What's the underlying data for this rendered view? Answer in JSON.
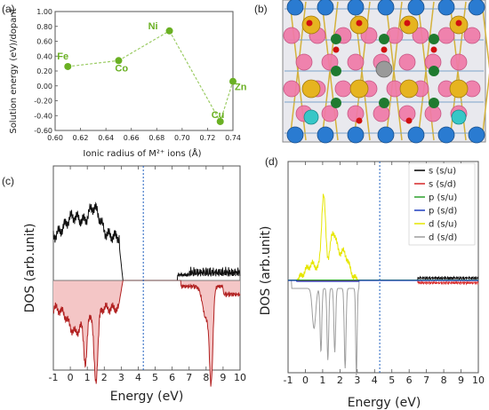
{
  "panels": {
    "a": "(a)",
    "b": "(b)",
    "c": "(c)",
    "d": "(d)"
  },
  "colors": {
    "point": "#6ab023",
    "dashed": "#9ccc65",
    "line_up": "#111111",
    "line_down": "#b22222",
    "fermi": "#1f5fbf",
    "s_u": "#000000",
    "s_d": "#d62728",
    "p_u": "#2ca02c",
    "p_d": "#1f3fbf",
    "d_u": "#e6e600",
    "d_d": "#9e9e9e"
  },
  "chart_data": [
    {
      "type": "scatter",
      "xlabel": "Ionic radius of M²⁺ ions (Å)",
      "ylabel": "Solution energy (eV)/dopant",
      "xlim": [
        0.6,
        0.74
      ],
      "ylim": [
        -0.6,
        1.0
      ],
      "xticks": [
        "0.60",
        "0.62",
        "0.64",
        "0.66",
        "0.68",
        "0.70",
        "0.72",
        "0.74"
      ],
      "yticks": [
        "-0.60",
        "-0.40",
        "-0.20",
        "0.00",
        "0.20",
        "0.40",
        "0.60",
        "0.80",
        "1.00"
      ],
      "points": [
        {
          "label": "Fe",
          "x": 0.61,
          "y": 0.26
        },
        {
          "label": "Co",
          "x": 0.65,
          "y": 0.34
        },
        {
          "label": "Ni",
          "x": 0.69,
          "y": 0.74
        },
        {
          "label": "Cu",
          "x": 0.73,
          "y": -0.48
        },
        {
          "label": "Zn",
          "x": 0.74,
          "y": 0.06
        }
      ]
    },
    {
      "type": "line",
      "xlabel": "Energy (eV)",
      "ylabel": "DOS (arb.unit)",
      "xlim": [
        -1,
        10
      ],
      "xticks": [
        "-1",
        "0",
        "1",
        "2",
        "3",
        "4",
        "5",
        "6",
        "7",
        "8",
        "9",
        "10"
      ],
      "fermi_level": 4.3
    },
    {
      "type": "line",
      "xlabel": "Energy (eV)",
      "ylabel": "DOS (arb.unit)",
      "xlim": [
        -1,
        10
      ],
      "xticks": [
        "-1",
        "0",
        "1",
        "2",
        "3",
        "4",
        "5",
        "6",
        "7",
        "8",
        "9",
        "10"
      ],
      "fermi_level": 4.3,
      "legend": [
        "s (s/u)",
        "s (s/d)",
        "p (s/u)",
        "p (s/d)",
        "d (s/u)",
        "d (s/d)"
      ]
    }
  ]
}
